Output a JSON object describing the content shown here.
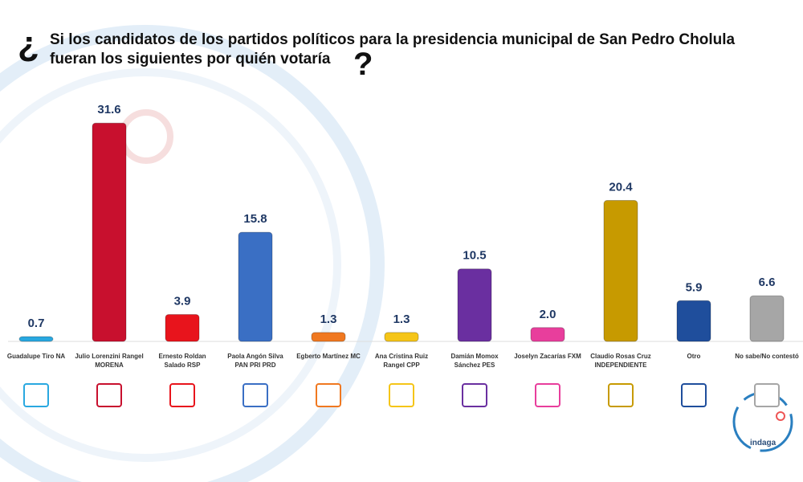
{
  "chart_data": {
    "type": "bar",
    "title_open": "¿",
    "title": "Si los candidatos de los partidos políticos para la presidencia municipal de San Pedro Cholula fueran los siguientes por quién votaría",
    "title_close": "?",
    "brand": "indaga",
    "categories": [
      "Guadalupe Tiro NA",
      "Julio Lorenzini Rangel MORENA",
      "Ernesto Roldan Salado RSP",
      "Paola Angón Silva PAN PRI PRD",
      "Egberto Martínez MC",
      "Ana Cristina Ruiz Rangel CPP",
      "Damián Momox Sánchez PES",
      "Joselyn Zacarías FXM",
      "Claudio Rosas Cruz INDEPENDIENTE",
      "Otro",
      "No sabe/No contestó"
    ],
    "values": [
      0.7,
      31.6,
      3.9,
      15.8,
      1.3,
      1.3,
      10.5,
      2.0,
      20.4,
      5.9,
      6.6
    ],
    "value_labels": [
      "0.7",
      "31.6",
      "3.9",
      "15.8",
      "1.3",
      "1.3",
      "10.5",
      "2.0",
      "20.4",
      "5.9",
      "6.6"
    ],
    "colors": [
      "#29a8e0",
      "#c8102e",
      "#e8141c",
      "#3a6fc4",
      "#f07820",
      "#f5c518",
      "#6a2fa0",
      "#e83e9c",
      "#c79a00",
      "#1f4e9c",
      "#a6a6a6"
    ]
  }
}
